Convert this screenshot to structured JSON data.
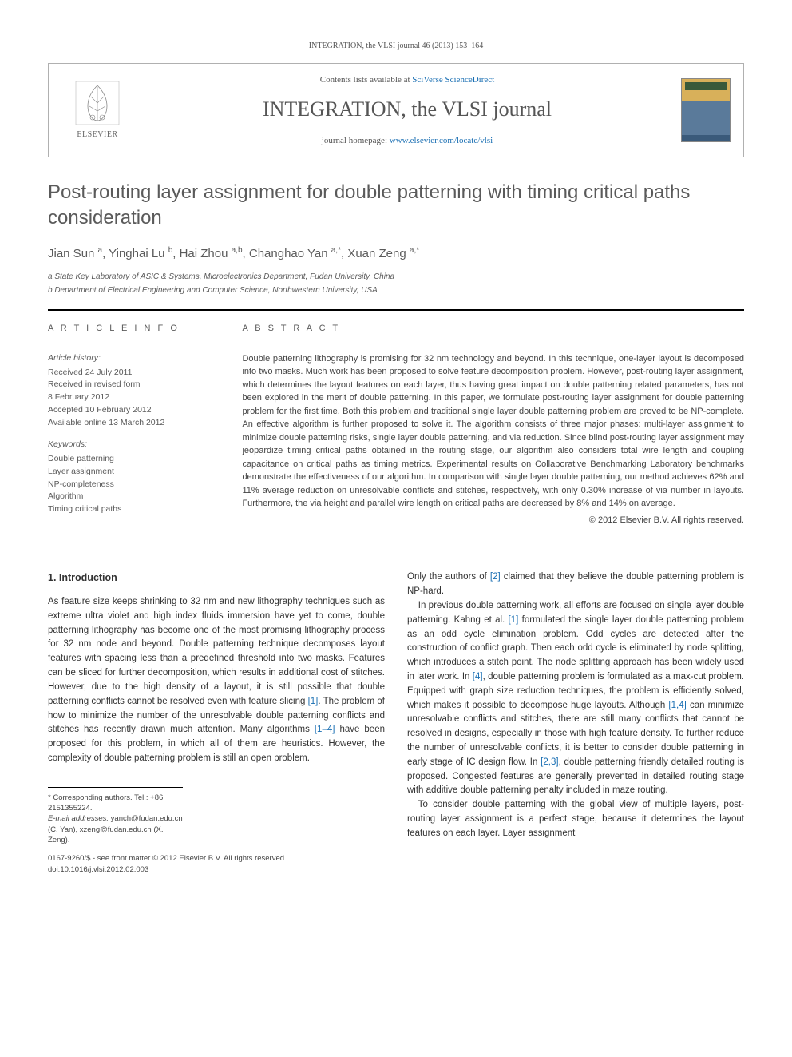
{
  "header": {
    "running_head": "INTEGRATION, the VLSI journal 46 (2013) 153–164",
    "contents_prefix": "Contents lists available at ",
    "contents_link": "SciVerse ScienceDirect",
    "journal_name": "INTEGRATION, the VLSI journal",
    "homepage_prefix": "journal homepage: ",
    "homepage_link": "www.elsevier.com/locate/vlsi",
    "publisher_word": "ELSEVIER"
  },
  "title": "Post-routing layer assignment for double patterning with timing critical paths consideration",
  "authors_html": "Jian Sun <sup>a</sup>, Yinghai Lu <sup>b</sup>, Hai Zhou <sup>a,b</sup>, Changhao Yan <sup>a,*</sup>, Xuan Zeng <sup>a,*</sup>",
  "affiliations": [
    "a State Key Laboratory of ASIC & Systems, Microelectronics Department, Fudan University, China",
    "b Department of Electrical Engineering and Computer Science, Northwestern University, USA"
  ],
  "article_info": {
    "label": "A R T I C L E   I N F O",
    "history_label": "Article history:",
    "history": [
      "Received 24 July 2011",
      "Received in revised form",
      "8 February 2012",
      "Accepted 10 February 2012",
      "Available online 13 March 2012"
    ],
    "keywords_label": "Keywords:",
    "keywords": [
      "Double patterning",
      "Layer assignment",
      "NP-completeness",
      "Algorithm",
      "Timing critical paths"
    ]
  },
  "abstract": {
    "label": "A B S T R A C T",
    "text": "Double patterning lithography is promising for 32 nm technology and beyond. In this technique, one-layer layout is decomposed into two masks. Much work has been proposed to solve feature decomposition problem. However, post-routing layer assignment, which determines the layout features on each layer, thus having great impact on double patterning related parameters, has not been explored in the merit of double patterning. In this paper, we formulate post-routing layer assignment for double patterning problem for the first time. Both this problem and traditional single layer double patterning problem are proved to be NP-complete. An effective algorithm is further proposed to solve it. The algorithm consists of three major phases: multi-layer assignment to minimize double patterning risks, single layer double patterning, and via reduction. Since blind post-routing layer assignment may jeopardize timing critical paths obtained in the routing stage, our algorithm also considers total wire length and coupling capacitance on critical paths as timing metrics. Experimental results on Collaborative Benchmarking Laboratory benchmarks demonstrate the effectiveness of our algorithm. In comparison with single layer double patterning, our method achieves 62% and 11% average reduction on unresolvable conflicts and stitches, respectively, with only 0.30% increase of via number in layouts. Furthermore, the via height and parallel wire length on critical paths are decreased by 8% and 14% on average.",
    "copyright": "© 2012 Elsevier B.V. All rights reserved."
  },
  "section_heading": "1.  Introduction",
  "col1": {
    "p1": "As feature size keeps shrinking to 32 nm and new lithography techniques such as extreme ultra violet and high index fluids immersion have yet to come, double patterning lithography has become one of the most promising lithography process for 32 nm node and beyond. Double patterning technique decomposes layout features with spacing less than a predefined threshold into two masks. Features can be sliced for further decomposition, which results in additional cost of stitches. However, due to the high density of a layout, it is still possible that double patterning conflicts cannot be resolved even with feature slicing [1]. The problem of how to minimize the number of the unresolvable double patterning conflicts and stitches has recently drawn much attention. Many algorithms [1–4] have been proposed for this problem, in which all of them are heuristics. However, the complexity of double patterning problem is still an open problem."
  },
  "col2": {
    "p1": "Only the authors of [2] claimed that they believe the double patterning problem is NP-hard.",
    "p2": "In previous double patterning work, all efforts are focused on single layer double patterning. Kahng et al. [1] formulated the single layer double patterning problem as an odd cycle elimination problem. Odd cycles are detected after the construction of conflict graph. Then each odd cycle is eliminated by node splitting, which introduces a stitch point. The node splitting approach has been widely used in later work. In [4], double patterning problem is formulated as a max-cut problem. Equipped with graph size reduction techniques, the problem is efficiently solved, which makes it possible to decompose huge layouts. Although [1,4] can minimize unresolvable conflicts and stitches, there are still many conflicts that cannot be resolved in designs, especially in those with high feature density. To further reduce the number of unresolvable conflicts, it is better to consider double patterning in early stage of IC design flow. In [2,3], double patterning friendly detailed routing is proposed. Congested features are generally prevented in detailed routing stage with additive double patterning penalty included in maze routing.",
    "p3": "To consider double patterning with the global view of multiple layers, post-routing layer assignment is a perfect stage, because it determines the layout features on each layer. Layer assignment"
  },
  "footnotes": {
    "corr": "* Corresponding authors. Tel.: +86 2151355224.",
    "emails_label": "E-mail addresses: ",
    "emails": "yanch@fudan.edu.cn (C. Yan), xzeng@fudan.edu.cn (X. Zeng).",
    "issn_line": "0167-9260/$ - see front matter © 2012 Elsevier B.V. All rights reserved.",
    "doi_line": "doi:10.1016/j.vlsi.2012.02.003"
  },
  "colors": {
    "link": "#1a6fb3",
    "text": "#333333",
    "muted": "#5a5a5a",
    "rule": "#000000"
  }
}
